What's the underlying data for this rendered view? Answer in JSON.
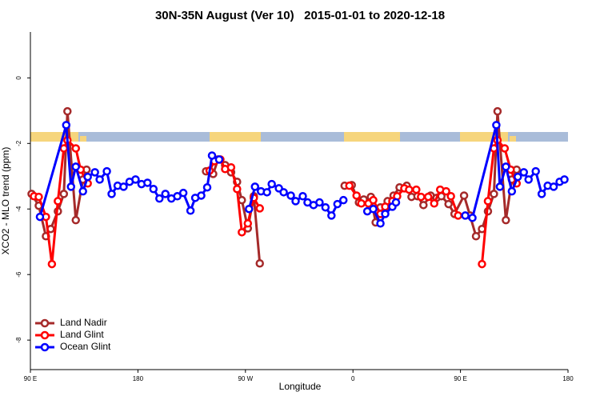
{
  "chart_data": {
    "type": "line",
    "title": "30N-35N August (Ver 10)   2015-01-01 to 2020-12-18",
    "xlabel": "Longitude",
    "ylabel": "XCO2 - MLO trend (ppm)",
    "xlim": [
      90,
      540
    ],
    "ylim": [
      -8.9,
      1.4
    ],
    "xticks": [
      {
        "value": 90,
        "label": "90 E"
      },
      {
        "value": 180,
        "label": "180"
      },
      {
        "value": 270,
        "label": "90 W"
      },
      {
        "value": 360,
        "label": "0"
      },
      {
        "value": 450,
        "label": "90 E"
      },
      {
        "value": 540,
        "label": "180"
      }
    ],
    "yticks": [
      0,
      -2,
      -4,
      -6,
      -8
    ],
    "legend": "bottomleft",
    "series": [
      {
        "name": "Land Nadir",
        "color": "#a52a2a",
        "x": [
          91,
          97,
          103,
          107,
          113,
          118,
          121,
          128,
          134,
          137,
          null,
          237,
          243,
          247,
          253,
          258,
          263,
          267,
          272,
          277,
          282,
          null,
          353,
          359,
          365,
          369,
          375,
          379,
          383,
          389,
          394,
          399,
          405,
          409,
          414,
          419,
          425,
          430,
          434,
          440,
          445,
          453,
          458,
          463,
          468,
          473,
          478,
          481,
          488,
          493,
          497
        ],
        "values": [
          -3.54,
          -3.9,
          -4.83,
          -4.61,
          -4.07,
          -3.54,
          -1.02,
          -4.34,
          -3.1,
          -2.8,
          null,
          -2.85,
          -2.93,
          -2.49,
          -2.66,
          -2.88,
          -3.17,
          -3.73,
          -4.59,
          -3.61,
          -5.66,
          null,
          -3.29,
          -3.27,
          -3.8,
          -3.71,
          -3.63,
          -4.41,
          -3.95,
          -3.76,
          -3.59,
          -3.34,
          -3.29,
          -3.63,
          -3.61,
          -3.88,
          -3.59,
          -3.66,
          -3.61,
          -3.85,
          -4.15,
          -3.59,
          -4.2,
          -4.83,
          -4.61,
          -4.07,
          -3.54,
          -1.02,
          -4.34,
          -3.1,
          -2.8
        ]
      },
      {
        "name": "Land Glint",
        "color": "#ff0000",
        "x": [
          93,
          97,
          103,
          108,
          113,
          118,
          121,
          128,
          132,
          138,
          null,
          240,
          244,
          249,
          253,
          258,
          263,
          267,
          272,
          277,
          282,
          null,
          357,
          363,
          367,
          373,
          377,
          383,
          387,
          393,
          397,
          403,
          407,
          413,
          417,
          423,
          428,
          433,
          438,
          442,
          448,
          null,
          468,
          473,
          478,
          481,
          487,
          492,
          497
        ],
        "values": [
          -3.61,
          -3.63,
          -4.24,
          -5.68,
          -3.76,
          -2.15,
          -1.9,
          -2.15,
          -2.8,
          -3.22,
          null,
          -2.83,
          -2.54,
          -2.49,
          -2.78,
          -2.73,
          -3.39,
          -4.71,
          -4.44,
          -3.66,
          -3.98,
          null,
          -3.29,
          -3.59,
          -3.83,
          -3.83,
          -3.73,
          -4.15,
          -3.93,
          -3.76,
          -3.61,
          -3.37,
          -3.41,
          -3.41,
          -3.63,
          -3.63,
          -3.83,
          -3.41,
          -3.46,
          -3.61,
          -4.2,
          null,
          -5.68,
          -3.76,
          -2.15,
          -1.9,
          -2.15,
          -2.8,
          -3.22
        ]
      },
      {
        "name": "Ocean Glint",
        "color": "#0000ff",
        "x": [
          98,
          120,
          124,
          128,
          134,
          138,
          144,
          148,
          154,
          158,
          163,
          168,
          173,
          178,
          183,
          188,
          193,
          198,
          203,
          208,
          213,
          218,
          224,
          228,
          233,
          238,
          242,
          248,
          null,
          273,
          278,
          283,
          288,
          292,
          298,
          302,
          308,
          312,
          318,
          322,
          327,
          332,
          337,
          342,
          347,
          352,
          null,
          372,
          377,
          383,
          387,
          393,
          396,
          null,
          454,
          460,
          480,
          483,
          488,
          493,
          498,
          503,
          507,
          513,
          518,
          523,
          528,
          533,
          537
        ],
        "values": [
          -4.24,
          -1.44,
          -3.32,
          -2.71,
          -3.46,
          -3.02,
          -2.88,
          -3.1,
          -2.85,
          -3.54,
          -3.29,
          -3.32,
          -3.17,
          -3.1,
          -3.24,
          -3.2,
          -3.39,
          -3.68,
          -3.54,
          -3.68,
          -3.61,
          -3.51,
          -4.05,
          -3.66,
          -3.59,
          -3.34,
          -2.37,
          -2.49,
          null,
          -4.0,
          -3.32,
          -3.46,
          -3.49,
          -3.24,
          -3.37,
          -3.49,
          -3.59,
          -3.76,
          -3.61,
          -3.8,
          -3.88,
          -3.8,
          -3.95,
          -4.2,
          -3.85,
          -3.73,
          null,
          -4.07,
          -4.0,
          -4.44,
          -4.15,
          -3.93,
          -3.8,
          null,
          -4.2,
          -4.27,
          -1.44,
          -3.32,
          -2.71,
          -3.46,
          -3.02,
          -2.88,
          -3.1,
          -2.85,
          -3.54,
          -3.29,
          -3.32,
          -3.17,
          -3.1
        ]
      }
    ]
  }
}
